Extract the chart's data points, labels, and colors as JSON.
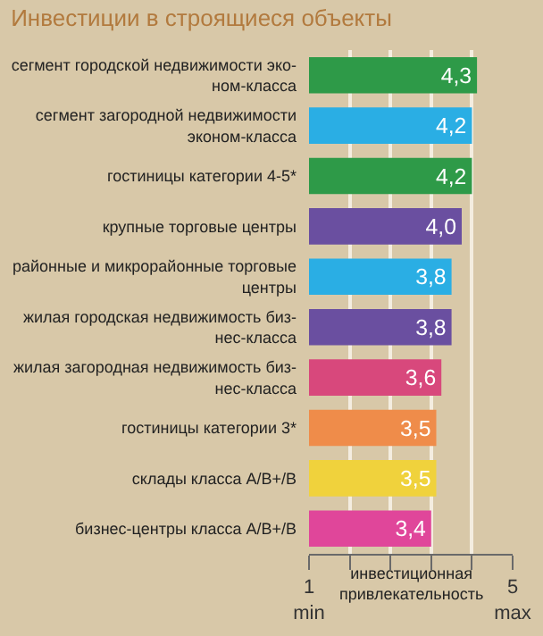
{
  "chart_data": {
    "type": "bar",
    "orientation": "horizontal",
    "title": "Инвестиции в строящиеся объекты",
    "categories": [
      "сегмент городской недвижимости эко-\nном-класса",
      "сегмент загородной недвижимости\nэконом-класса",
      "гостиницы категории 4-5*",
      "крупные торговые центры",
      "районные и микрорайонные торговые\nцентры",
      "жилая городская недвижимость биз-\nнес-класса",
      "жилая загородная недвижимость биз-\nнес-класса",
      "гостиницы категории 3*",
      "склады класса A/B+/B",
      "бизнес-центры класса A/B+/B"
    ],
    "values": [
      4.3,
      4.2,
      4.2,
      4.0,
      3.8,
      3.8,
      3.6,
      3.5,
      3.5,
      3.4
    ],
    "value_labels": [
      "4,3",
      "4,2",
      "4,2",
      "4,0",
      "3,8",
      "3,8",
      "3,6",
      "3,5",
      "3,5",
      "3,4"
    ],
    "colors": [
      "#2e9a48",
      "#2aaee4",
      "#2e9a48",
      "#6a4fa0",
      "#2aaee4",
      "#6a4fa0",
      "#d8487c",
      "#ef8c4a",
      "#f0d23c",
      "#e0469a"
    ],
    "xlim": [
      1,
      5
    ],
    "xticks": [
      {
        "value": 1,
        "label": "1\nmin"
      },
      {
        "value": 1.8,
        "label": null
      },
      {
        "value": 2.6,
        "label": null
      },
      {
        "value": 3.4,
        "label": null
      },
      {
        "value": 4.2,
        "label": null
      },
      {
        "value": 5,
        "label": "5\nmax"
      }
    ],
    "xlabel": "инвестиционная\nпривлекательность",
    "grid": "x"
  }
}
